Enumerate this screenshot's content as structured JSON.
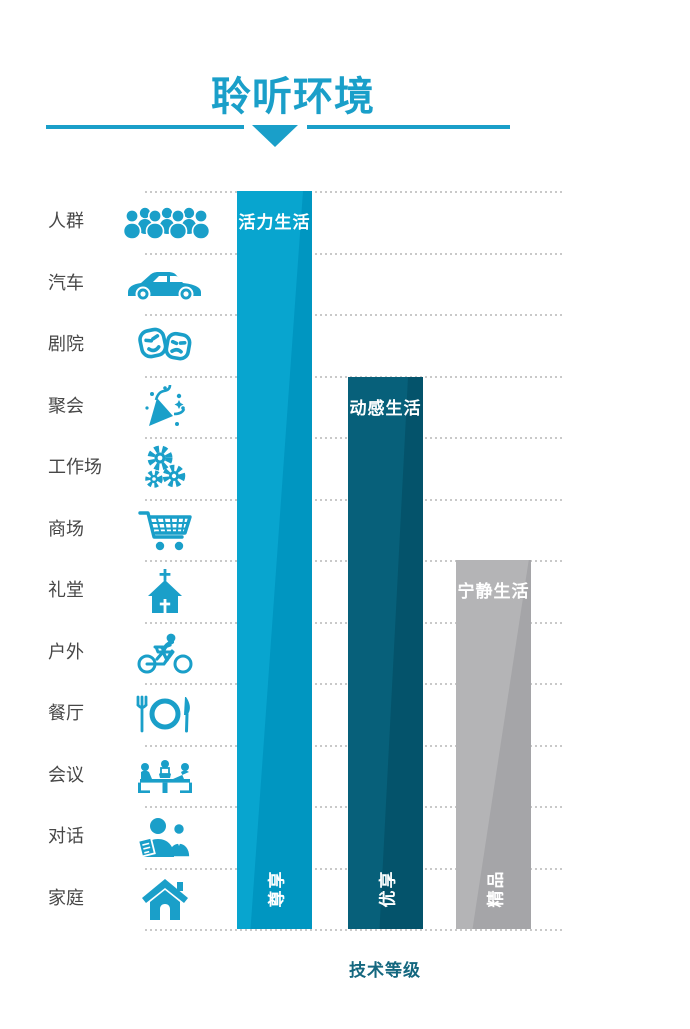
{
  "header": {
    "title": "聆听环境",
    "divider_icon": "down-triangle-icon",
    "accent_color": "#1A9FC9"
  },
  "chart_data": {
    "type": "bar",
    "title": "聆听环境",
    "xlabel": "技术等级",
    "ylabel": "",
    "orientation": "vertical bars beside a 12-row listening-environment icon list",
    "grid": "horizontal dashed gridlines at every row boundary",
    "ylim": [
      0,
      12
    ],
    "legend": "none",
    "rows": [
      {
        "label": "人群",
        "icon": "crowd-icon"
      },
      {
        "label": "汽车",
        "icon": "car-icon"
      },
      {
        "label": "剧院",
        "icon": "theater-masks-icon"
      },
      {
        "label": "聚会",
        "icon": "party-icon"
      },
      {
        "label": "工作场",
        "icon": "gears-icon"
      },
      {
        "label": "商场",
        "icon": "shopping-cart-icon"
      },
      {
        "label": "礼堂",
        "icon": "church-icon"
      },
      {
        "label": "户外",
        "icon": "cyclist-icon"
      },
      {
        "label": "餐厅",
        "icon": "restaurant-icon"
      },
      {
        "label": "会议",
        "icon": "meeting-icon"
      },
      {
        "label": "对话",
        "icon": "conversation-icon"
      },
      {
        "label": "家庭",
        "icon": "home-icon"
      }
    ],
    "bars": [
      {
        "top_label": "活力生活",
        "bottom_label": "尊享",
        "value": 12,
        "rows_covered": 12,
        "color": "#08A5CF",
        "shade_color": "#0096C1"
      },
      {
        "top_label": "动感生活",
        "bottom_label": "优享",
        "value": 9,
        "rows_covered": 9,
        "color": "#07607A",
        "shade_color": "#04536B"
      },
      {
        "top_label": "宁静生活",
        "bottom_label": "精品",
        "value": 6,
        "rows_covered": 6,
        "color": "#B4B4B6",
        "shade_color": "#A5A5A8"
      }
    ]
  }
}
